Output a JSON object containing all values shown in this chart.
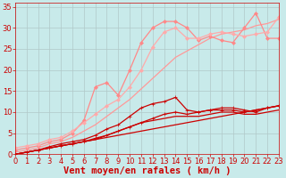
{
  "background_color": "#c8eaea",
  "grid_color": "#b0c8c8",
  "xlabel": "Vent moyen/en rafales ( km/h )",
  "xlabel_color": "#cc0000",
  "xlabel_fontsize": 7.5,
  "tick_color": "#cc0000",
  "tick_fontsize": 6,
  "xlim": [
    0,
    23
  ],
  "ylim": [
    0,
    36
  ],
  "yticks": [
    0,
    5,
    10,
    15,
    20,
    25,
    30,
    35
  ],
  "xticks": [
    0,
    1,
    2,
    3,
    4,
    5,
    6,
    7,
    8,
    9,
    10,
    11,
    12,
    13,
    14,
    15,
    16,
    17,
    18,
    19,
    20,
    21,
    22,
    23
  ],
  "series": [
    {
      "x": [
        0,
        1,
        2,
        3,
        4,
        5,
        6,
        7,
        8,
        9,
        10,
        11,
        12,
        13,
        14,
        15,
        16,
        17,
        18,
        19,
        20,
        21,
        22,
        23
      ],
      "y": [
        0.0,
        0.5,
        1.0,
        1.5,
        2.0,
        2.5,
        3.0,
        3.5,
        4.0,
        4.5,
        5.0,
        5.5,
        6.0,
        6.5,
        7.0,
        7.5,
        8.0,
        8.5,
        9.0,
        9.5,
        10.0,
        10.5,
        11.0,
        11.5
      ],
      "color": "#cc0000",
      "linewidth": 0.9,
      "marker": null,
      "alpha": 1.0
    },
    {
      "x": [
        0,
        1,
        2,
        3,
        4,
        5,
        6,
        7,
        8,
        9,
        10,
        11,
        12,
        13,
        14,
        15,
        16,
        17,
        18,
        19,
        20,
        21,
        22,
        23
      ],
      "y": [
        0.0,
        0.5,
        1.0,
        1.5,
        2.0,
        2.5,
        3.0,
        3.8,
        4.5,
        5.5,
        6.5,
        7.5,
        8.5,
        9.5,
        10.0,
        9.5,
        10.0,
        10.5,
        10.5,
        10.5,
        10.0,
        10.5,
        11.0,
        11.5
      ],
      "color": "#cc0000",
      "linewidth": 0.9,
      "marker": "+",
      "markersize": 3,
      "alpha": 1.0
    },
    {
      "x": [
        0,
        1,
        2,
        3,
        4,
        5,
        6,
        7,
        8,
        9,
        10,
        11,
        12,
        13,
        14,
        15,
        16,
        17,
        18,
        19,
        20,
        21,
        22,
        23
      ],
      "y": [
        0.0,
        0.5,
        1.0,
        1.8,
        2.5,
        3.0,
        3.5,
        4.5,
        6.0,
        7.0,
        9.0,
        11.0,
        12.0,
        12.5,
        13.5,
        10.5,
        10.0,
        10.5,
        11.0,
        11.0,
        10.5,
        10.0,
        11.0,
        11.5
      ],
      "color": "#cc0000",
      "linewidth": 0.9,
      "marker": "+",
      "markersize": 3,
      "alpha": 1.0
    },
    {
      "x": [
        0,
        1,
        2,
        3,
        4,
        5,
        6,
        7,
        8,
        9,
        10,
        11,
        12,
        13,
        14,
        15,
        16,
        17,
        18,
        19,
        20,
        21,
        22,
        23
      ],
      "y": [
        0.0,
        0.5,
        1.0,
        1.5,
        2.0,
        2.5,
        3.0,
        3.5,
        4.5,
        5.5,
        6.5,
        7.5,
        8.0,
        8.5,
        9.0,
        9.0,
        9.0,
        9.5,
        10.0,
        10.0,
        9.5,
        9.5,
        10.0,
        10.5
      ],
      "color": "#cc0000",
      "linewidth": 0.9,
      "marker": null,
      "alpha": 1.0
    },
    {
      "x": [
        0,
        1,
        2,
        3,
        4,
        5,
        6,
        7,
        8,
        9,
        10,
        11,
        12,
        13,
        14,
        15,
        16,
        17,
        18,
        19,
        20,
        21,
        22,
        23
      ],
      "y": [
        0.5,
        1.0,
        1.5,
        2.5,
        3.0,
        4.0,
        5.5,
        7.0,
        9.0,
        11.0,
        13.0,
        15.5,
        18.0,
        20.5,
        23.0,
        24.5,
        26.0,
        27.5,
        28.5,
        29.0,
        29.5,
        30.5,
        31.0,
        32.0
      ],
      "color": "#ff9999",
      "linewidth": 0.9,
      "marker": null,
      "alpha": 1.0
    },
    {
      "x": [
        0,
        1,
        2,
        3,
        4,
        5,
        6,
        7,
        8,
        9,
        10,
        11,
        12,
        13,
        14,
        15,
        16,
        17,
        18,
        19,
        20,
        21,
        22,
        23
      ],
      "y": [
        1.0,
        1.5,
        2.0,
        3.0,
        3.5,
        5.0,
        8.0,
        16.0,
        17.0,
        14.0,
        20.0,
        26.5,
        30.0,
        31.5,
        31.5,
        30.0,
        27.0,
        28.0,
        27.0,
        26.5,
        30.0,
        33.5,
        27.5,
        27.5
      ],
      "color": "#ff8888",
      "linewidth": 0.9,
      "marker": "D",
      "markersize": 2,
      "alpha": 1.0
    },
    {
      "x": [
        0,
        1,
        2,
        3,
        4,
        5,
        6,
        7,
        8,
        9,
        10,
        11,
        12,
        13,
        14,
        15,
        16,
        17,
        18,
        19,
        20,
        21,
        22,
        23
      ],
      "y": [
        1.5,
        2.0,
        2.5,
        3.5,
        4.0,
        5.5,
        7.5,
        9.5,
        11.5,
        13.0,
        16.0,
        20.0,
        25.5,
        29.0,
        30.0,
        27.5,
        27.5,
        28.5,
        29.0,
        28.5,
        28.0,
        28.5,
        29.0,
        32.5
      ],
      "color": "#ffaaaa",
      "linewidth": 0.9,
      "marker": "D",
      "markersize": 2,
      "alpha": 1.0
    }
  ]
}
